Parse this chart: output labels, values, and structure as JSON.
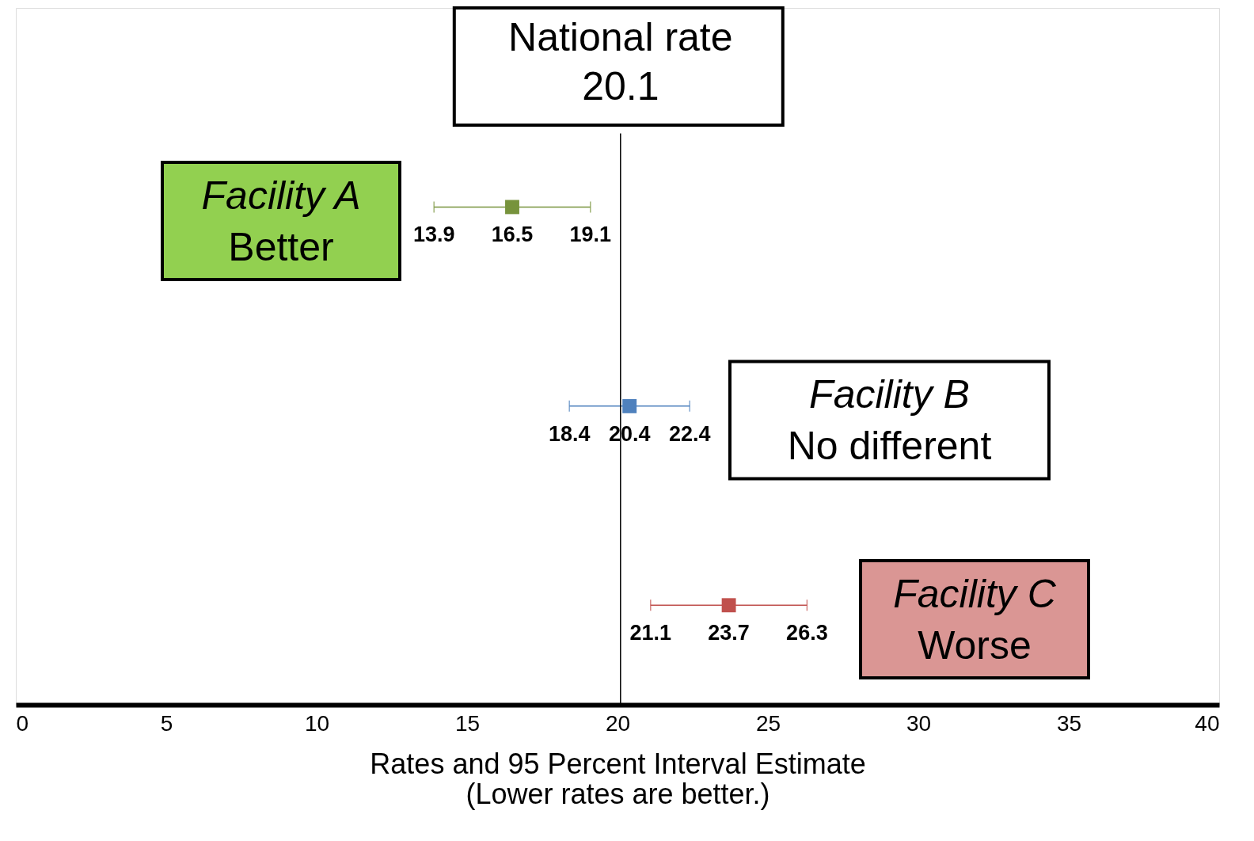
{
  "chart_data": {
    "type": "scatter",
    "orientation": "horizontal",
    "categories": [
      null,
      null,
      null
    ],
    "values": [
      16.5,
      20.4,
      23.7
    ],
    "errors": [
      [
        13.9,
        19.1
      ],
      [
        18.4,
        22.4
      ],
      [
        21.1,
        26.3
      ]
    ],
    "colors": [
      "#77933c",
      "#4f81bd",
      "#c0504d"
    ],
    "marker": "square",
    "data_labels": true,
    "xlim": [
      0,
      40
    ],
    "xticks": [
      0,
      5,
      10,
      15,
      20,
      25,
      30,
      35,
      40
    ],
    "xlabel": "Rates and 95 Percent Interval Estimate\n(Lower rates are better.)",
    "ref_lines": [
      {
        "axis": "x",
        "value": 20.1,
        "label": "National rate\n20.1",
        "color": "#000000"
      }
    ],
    "annotations": [
      "Facility A\nBetter",
      "Facility B\nNo different",
      "Facility C\nWorse",
      "13.9",
      "19.1",
      "18.4",
      "22.4",
      "21.1",
      "26.3"
    ],
    "tick_labels": "x",
    "grid": false,
    "legend": false
  }
}
